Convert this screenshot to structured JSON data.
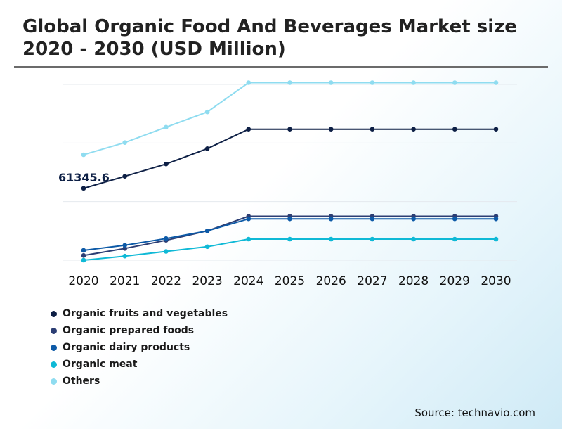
{
  "title": "Global Organic Food And Beverages Market size 2020 - 2030 (USD Million)",
  "source": "Source: technavio.com",
  "chart_data": {
    "type": "line",
    "title": "Global Organic Food And Beverages Market size 2020 - 2030 (USD Million)",
    "xlabel": "",
    "ylabel": "",
    "categories": [
      "2020",
      "2021",
      "2022",
      "2023",
      "2024",
      "2025",
      "2026",
      "2027",
      "2028",
      "2029",
      "2030"
    ],
    "ylim": [
      0,
      150000
    ],
    "grid": true,
    "legend_position": "bottom-left",
    "annotation": {
      "series": 0,
      "index": 0,
      "text": "61345.6"
    },
    "series": [
      {
        "name": "Organic fruits and vegetables",
        "color": "#0d1f45",
        "values": [
          61345.6,
          71600,
          82100,
          95200,
          111800,
          111800,
          111800,
          111800,
          111800,
          111800,
          111800
        ]
      },
      {
        "name": "Organic prepared foods",
        "color": "#2c3e74",
        "values": [
          4000,
          10000,
          17000,
          25000,
          37500,
          37500,
          37500,
          37500,
          37500,
          37500,
          37500
        ]
      },
      {
        "name": "Organic dairy products",
        "color": "#0d5aa7",
        "values": [
          8400,
          12800,
          18500,
          25000,
          35300,
          35300,
          35300,
          35300,
          35300,
          35300,
          35300
        ]
      },
      {
        "name": "Organic meat",
        "color": "#0fb9d6",
        "values": [
          0,
          3500,
          7500,
          11500,
          18000,
          18000,
          18000,
          18000,
          18000,
          18000,
          18000
        ]
      },
      {
        "name": "Others",
        "color": "#8fdcf0",
        "values": [
          90000,
          100400,
          113500,
          126500,
          151500,
          151500,
          151500,
          151500,
          151500,
          151500,
          151500
        ]
      }
    ]
  }
}
